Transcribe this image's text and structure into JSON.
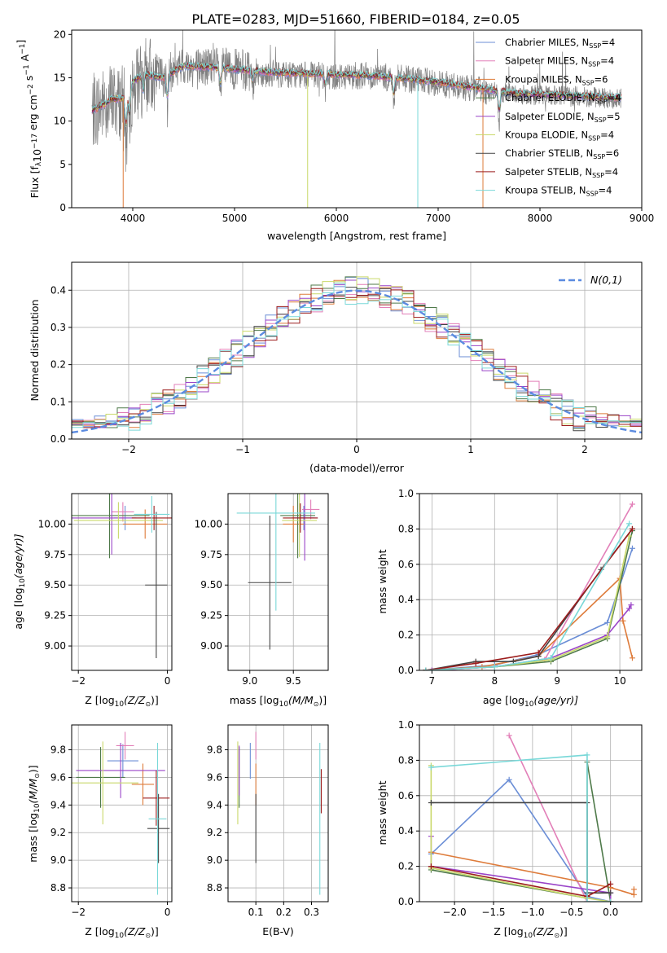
{
  "figure": {
    "title": "PLATE=0283, MJD=51660, FIBERID=0184, z=0.05"
  },
  "colors": {
    "series": [
      "#6b8ed6",
      "#e27fb8",
      "#de7b3a",
      "#4f7a4a",
      "#9a44c8",
      "#c9d96a",
      "#444444",
      "#9c1c1c",
      "#79d8d8"
    ],
    "data": "#808080",
    "gauss": "#5b8be0"
  },
  "series": [
    {
      "name_main": "Chabrier MILES, N",
      "name_sub": "SSP",
      "name_tail": "=4",
      "short": "Chabrier MILES"
    },
    {
      "name_main": "Salpeter MILES, N",
      "name_sub": "SSP",
      "name_tail": "=4",
      "short": "Salpeter MILES"
    },
    {
      "name_main": "Kroupa MILES, N",
      "name_sub": "SSP",
      "name_tail": "=6",
      "short": "Kroupa MILES"
    },
    {
      "name_main": "Chabrier ELODIE, N",
      "name_sub": "SSP",
      "name_tail": "=4",
      "short": "Chabrier ELODIE"
    },
    {
      "name_main": "Salpeter ELODIE, N",
      "name_sub": "SSP",
      "name_tail": "=5",
      "short": "Salpeter ELODIE"
    },
    {
      "name_main": "Kroupa ELODIE, N",
      "name_sub": "SSP",
      "name_tail": "=4",
      "short": "Kroupa ELODIE"
    },
    {
      "name_main": "Chabrier STELIB, N",
      "name_sub": "SSP",
      "name_tail": "=6",
      "short": "Chabrier STELIB"
    },
    {
      "name_main": "Salpeter STELIB, N",
      "name_sub": "SSP",
      "name_tail": "=4",
      "short": "Salpeter STELIB"
    },
    {
      "name_main": "Kroupa STELIB, N",
      "name_sub": "SSP",
      "name_tail": "=4",
      "short": "Kroupa STELIB"
    }
  ],
  "chart_data": [
    {
      "id": "spectrum",
      "type": "line",
      "xlabel": "wavelength [Angstrom, rest frame]",
      "ylabel_parts": [
        "Flux [f",
        "λ",
        "10",
        "−17",
        " erg cm",
        "−2",
        " s",
        "−1",
        " A",
        "−1",
        "]"
      ],
      "xlim": [
        3400,
        9000
      ],
      "ylim": [
        0,
        20.5
      ],
      "xticks": [
        4000,
        5000,
        6000,
        7000,
        8000,
        9000
      ],
      "yticks": [
        0,
        5,
        10,
        15,
        20
      ],
      "grid": false,
      "legend": "top-right",
      "data_x_range": [
        3600,
        8800
      ],
      "data_continuum": [
        [
          3600,
          11
        ],
        [
          3700,
          11.8
        ],
        [
          3800,
          12.5
        ],
        [
          3900,
          12
        ],
        [
          4000,
          14
        ],
        [
          4100,
          15
        ],
        [
          4200,
          15.5
        ],
        [
          4300,
          15.2
        ],
        [
          4500,
          16.3
        ],
        [
          4800,
          16.2
        ],
        [
          5000,
          16
        ],
        [
          5300,
          15.5
        ],
        [
          5700,
          15.3
        ],
        [
          6000,
          15.2
        ],
        [
          6300,
          15.3
        ],
        [
          6560,
          15
        ],
        [
          6800,
          14.7
        ],
        [
          7000,
          14.4
        ],
        [
          7200,
          14
        ],
        [
          7500,
          13.4
        ],
        [
          7800,
          13.1
        ],
        [
          8200,
          12.9
        ],
        [
          8500,
          12.8
        ],
        [
          8800,
          12.5
        ]
      ],
      "model_continuum": [
        [
          3600,
          11.2
        ],
        [
          3700,
          11.8
        ],
        [
          3800,
          12.6
        ],
        [
          3900,
          12.6
        ],
        [
          4000,
          14.5
        ],
        [
          4100,
          15.4
        ],
        [
          4300,
          15
        ],
        [
          4500,
          16.4
        ],
        [
          4800,
          16.2
        ],
        [
          5000,
          16
        ],
        [
          5400,
          15.6
        ],
        [
          5900,
          15.4
        ],
        [
          6300,
          15.3
        ],
        [
          6600,
          15
        ],
        [
          7000,
          14.5
        ],
        [
          7400,
          13.8
        ],
        [
          7800,
          13.2
        ],
        [
          8200,
          13
        ],
        [
          8800,
          12.7
        ]
      ],
      "absorption_dips": [
        [
          3934,
          6
        ],
        [
          3968,
          5
        ],
        [
          4101,
          3
        ],
        [
          4340,
          4
        ],
        [
          4861,
          3
        ],
        [
          5175,
          2
        ],
        [
          5893,
          2
        ],
        [
          6563,
          3
        ],
        [
          7600,
          4
        ]
      ],
      "spikes": [
        [
          3906,
          0
        ],
        [
          5718,
          0
        ],
        [
          6800,
          0
        ],
        [
          7440,
          0
        ]
      ],
      "emission_lines": [
        [
          3727,
          5
        ],
        [
          4861,
          3
        ],
        [
          4959,
          3
        ],
        [
          5007,
          4
        ],
        [
          6300,
          3
        ],
        [
          6563,
          6
        ],
        [
          6583,
          4
        ]
      ]
    },
    {
      "id": "residual_histogram",
      "type": "histogram",
      "xlabel": "(data-model)/error",
      "ylabel": "Normed distribution",
      "xlim": [
        -2.5,
        2.5
      ],
      "ylim": [
        0,
        0.475
      ],
      "xticks": [
        -2,
        -1,
        0,
        1,
        2
      ],
      "xtick_labels": [
        "−2",
        "−1",
        "0",
        "1",
        "2"
      ],
      "yticks": [
        0,
        0.1,
        0.2,
        0.3,
        0.4
      ],
      "ytick_labels": [
        "0.0",
        "0.1",
        "0.2",
        "0.3",
        "0.4"
      ],
      "grid": true,
      "legend": "top-right",
      "gauss_label": "N(0,1)",
      "bins": 50
    },
    {
      "id": "age_vs_Z",
      "type": "errorbar",
      "xlabel_main": "Z [log",
      "xlabel_sub": "10",
      "xlabel_tail": "(Z/Z",
      "xlabel_end": ")]",
      "ylabel_main": "age  [log",
      "ylabel_sub": "10",
      "ylabel_tail": "(age/yr)]",
      "xlim": [
        -2.15,
        0.1
      ],
      "ylim": [
        8.8,
        10.25
      ],
      "xticks": [
        -2,
        0
      ],
      "xtick_labels": [
        "−2",
        "0"
      ],
      "yticks": [
        9.0,
        9.25,
        9.5,
        9.75,
        10.0
      ],
      "ytick_labels": [
        "9.00",
        "9.25",
        "9.50",
        "9.75",
        "10.00"
      ],
      "grid": true,
      "points": [
        [
          -0.95,
          10.05,
          0.25,
          0.1,
          0
        ],
        [
          -1.0,
          10.1,
          0.25,
          0.08,
          1
        ],
        [
          -0.5,
          10.0,
          0.5,
          0.12,
          2
        ],
        [
          -1.3,
          10.07,
          0.9,
          0.35,
          3
        ],
        [
          -1.25,
          10.05,
          0.9,
          0.3,
          4
        ],
        [
          -1.1,
          10.03,
          1.0,
          0.15,
          5
        ],
        [
          -0.25,
          9.5,
          0.25,
          0.6,
          6
        ],
        [
          -0.3,
          10.05,
          0.5,
          0.1,
          7
        ],
        [
          -0.35,
          10.08,
          0.4,
          0.15,
          8
        ]
      ]
    },
    {
      "id": "age_vs_mass",
      "type": "errorbar",
      "xlabel_main": "mass [log",
      "xlabel_sub": "10",
      "xlabel_tail": "(M/M",
      "xlabel_end": ")]",
      "xlim": [
        8.75,
        9.9
      ],
      "ylim": [
        8.8,
        10.25
      ],
      "xticks": [
        9.0,
        9.5
      ],
      "xtick_labels": [
        "9.0",
        "9.5"
      ],
      "yticks": [
        9.0,
        9.25,
        9.5,
        9.75,
        10.0
      ],
      "ytick_labels": [
        "9.00",
        "9.25",
        "9.50",
        "9.75",
        "10.00"
      ],
      "grid": true,
      "points": [
        [
          9.62,
          10.05,
          0.12,
          0.1,
          0
        ],
        [
          9.7,
          10.12,
          0.1,
          0.08,
          1
        ],
        [
          9.5,
          10.0,
          0.12,
          0.15,
          2
        ],
        [
          9.55,
          10.07,
          0.2,
          0.35,
          3
        ],
        [
          9.63,
          10.05,
          0.15,
          0.35,
          4
        ],
        [
          9.57,
          10.03,
          0.2,
          0.3,
          5
        ],
        [
          9.23,
          9.52,
          0.25,
          0.55,
          6
        ],
        [
          9.58,
          10.05,
          0.2,
          0.12,
          7
        ],
        [
          9.3,
          10.09,
          0.45,
          0.8,
          8
        ]
      ]
    },
    {
      "id": "massweight_vs_age",
      "type": "line",
      "xlabel_main": "age  [log",
      "xlabel_sub": "10",
      "xlabel_tail": "(age/yr)]",
      "ylabel": "mass weight",
      "xlim": [
        6.8,
        10.35
      ],
      "ylim": [
        0,
        1.0
      ],
      "xticks": [
        7,
        8,
        9,
        10
      ],
      "yticks": [
        0,
        0.2,
        0.4,
        0.6,
        0.8,
        1.0
      ],
      "ytick_labels": [
        "0.0",
        "0.2",
        "0.4",
        "0.6",
        "0.8",
        "1.0"
      ],
      "grid": true,
      "lines": [
        [
          [
            6.9,
            0
          ],
          [
            8.0,
            0.03
          ],
          [
            8.7,
            0.09
          ],
          [
            9.8,
            0.27
          ],
          [
            10.2,
            0.69
          ]
        ],
        [
          [
            7.0,
            0
          ],
          [
            8.0,
            0.02
          ],
          [
            8.8,
            0.06
          ],
          [
            10.2,
            0.94
          ]
        ],
        [
          [
            6.9,
            0
          ],
          [
            7.8,
            0.02
          ],
          [
            8.7,
            0.08
          ],
          [
            10.0,
            0.52
          ],
          [
            10.05,
            0.28
          ],
          [
            10.2,
            0.07
          ]
        ],
        [
          [
            6.9,
            0
          ],
          [
            8.0,
            0.02
          ],
          [
            8.9,
            0.05
          ],
          [
            9.8,
            0.18
          ],
          [
            10.2,
            0.79
          ]
        ],
        [
          [
            7.0,
            0
          ],
          [
            8.0,
            0.02
          ],
          [
            8.9,
            0.07
          ],
          [
            9.8,
            0.2
          ],
          [
            10.15,
            0.35
          ],
          [
            10.18,
            0.37
          ]
        ],
        [
          [
            6.9,
            0
          ],
          [
            8.0,
            0.02
          ],
          [
            8.9,
            0.06
          ],
          [
            9.8,
            0.19
          ],
          [
            10.15,
            0.76
          ]
        ],
        [
          [
            6.9,
            0
          ],
          [
            7.7,
            0.05
          ],
          [
            8.3,
            0.05
          ],
          [
            8.7,
            0.08
          ],
          [
            9.7,
            0.57
          ],
          [
            10.2,
            0.8
          ]
        ],
        [
          [
            6.9,
            0
          ],
          [
            7.7,
            0.04
          ],
          [
            8.7,
            0.1
          ],
          [
            10.2,
            0.8
          ]
        ],
        [
          [
            6.9,
            0
          ],
          [
            8.0,
            0.02
          ],
          [
            8.9,
            0.07
          ],
          [
            10.15,
            0.83
          ]
        ]
      ]
    },
    {
      "id": "mass_vs_Z",
      "type": "errorbar",
      "xlabel_main": "Z [log",
      "xlabel_sub": "10",
      "xlabel_tail": "(Z/Z",
      "xlabel_end": ")]",
      "ylabel_main": "mass [log",
      "ylabel_sub": "10",
      "ylabel_tail": "(M/M",
      "ylabel_end": ")]",
      "xlim": [
        -2.15,
        0.1
      ],
      "ylim": [
        8.7,
        9.98
      ],
      "xticks": [
        -2,
        0
      ],
      "xtick_labels": [
        "−2",
        "0"
      ],
      "yticks": [
        8.8,
        9.0,
        9.2,
        9.4,
        9.6,
        9.8
      ],
      "ytick_labels": [
        "8.8",
        "9.0",
        "9.2",
        "9.4",
        "9.6",
        "9.8"
      ],
      "grid": true,
      "points": [
        [
          -1.0,
          9.72,
          0.35,
          0.12,
          0
        ],
        [
          -0.95,
          9.83,
          0.2,
          0.1,
          1
        ],
        [
          -0.55,
          9.55,
          0.25,
          0.15,
          2
        ],
        [
          -1.5,
          9.6,
          0.55,
          0.22,
          3
        ],
        [
          -1.05,
          9.65,
          1.0,
          0.2,
          4
        ],
        [
          -1.45,
          9.56,
          0.8,
          0.3,
          5
        ],
        [
          -0.2,
          9.23,
          0.25,
          0.25,
          6
        ],
        [
          -0.25,
          9.45,
          0.3,
          0.2,
          7
        ],
        [
          -0.22,
          9.3,
          0.2,
          0.55,
          8
        ]
      ]
    },
    {
      "id": "mass_vs_EBV",
      "type": "errorbar",
      "xlabel": "E(B-V)",
      "xlim": [
        0.0,
        0.36
      ],
      "ylim": [
        8.7,
        9.98
      ],
      "xticks": [
        0.1,
        0.2,
        0.3
      ],
      "xtick_labels": [
        "0.1",
        "0.2",
        "0.3"
      ],
      "yticks": [
        8.8,
        9.0,
        9.2,
        9.4,
        9.6,
        9.8
      ],
      "ytick_labels": [
        "8.8",
        "9.0",
        "9.2",
        "9.4",
        "9.6",
        "9.8"
      ],
      "grid": true,
      "points": [
        [
          0.08,
          9.72,
          0,
          0.13,
          0
        ],
        [
          0.1,
          9.83,
          0,
          0.1,
          1
        ],
        [
          0.1,
          9.55,
          0,
          0.15,
          2
        ],
        [
          0.04,
          9.6,
          0,
          0.22,
          3
        ],
        [
          0.04,
          9.65,
          0,
          0.18,
          4
        ],
        [
          0.035,
          9.56,
          0,
          0.3,
          5
        ],
        [
          0.1,
          9.23,
          0,
          0.25,
          6
        ],
        [
          0.335,
          9.5,
          0,
          0.16,
          7
        ],
        [
          0.33,
          9.3,
          0,
          0.55,
          8
        ]
      ]
    },
    {
      "id": "massweight_vs_Z",
      "type": "line",
      "xlabel_main": "Z [log",
      "xlabel_sub": "10",
      "xlabel_tail": "(Z/Z",
      "xlabel_end": ")]",
      "ylabel": "mass weight",
      "xlim": [
        -2.45,
        0.4
      ],
      "ylim": [
        0,
        1.0
      ],
      "xticks": [
        -2.0,
        -1.5,
        -1.0,
        -0.5,
        0.0
      ],
      "xtick_labels": [
        "−2.0",
        "−1.5",
        "−1.0",
        "−0.5",
        "0.0"
      ],
      "yticks": [
        0,
        0.2,
        0.4,
        0.6,
        0.8,
        1.0
      ],
      "ytick_labels": [
        "0.0",
        "0.2",
        "0.4",
        "0.6",
        "0.8",
        "1.0"
      ],
      "grid": true,
      "lines": [
        [
          [
            -2.3,
            0.27
          ],
          [
            -1.3,
            0.69
          ],
          [
            -0.3,
            0.03
          ],
          [
            0.0,
            0.0
          ]
        ],
        [
          [
            -1.3,
            0.94
          ],
          [
            -0.3,
            0.0
          ]
        ],
        [
          [
            -2.3,
            0.28
          ],
          [
            0.0,
            0.08
          ],
          [
            0.3,
            0.04
          ],
          [
            0.3,
            0.07
          ]
        ],
        [
          [
            -2.3,
            0.18
          ],
          [
            -0.3,
            0.02
          ],
          [
            -0.3,
            0.79
          ],
          [
            0.0,
            0.0
          ]
        ],
        [
          [
            -2.3,
            0.37
          ],
          [
            -2.3,
            0.2
          ],
          [
            0.0,
            0.05
          ],
          [
            0.0,
            0.0
          ]
        ],
        [
          [
            -2.3,
            0.77
          ],
          [
            -2.3,
            0.19
          ],
          [
            -0.3,
            0.02
          ],
          [
            0.0,
            0.0
          ]
        ],
        [
          [
            -2.3,
            0.56
          ],
          [
            -0.3,
            0.56
          ],
          [
            -0.3,
            0.05
          ],
          [
            0.0,
            0.05
          ]
        ],
        [
          [
            -2.3,
            0.2
          ],
          [
            -0.3,
            0.03
          ],
          [
            0.0,
            0.1
          ]
        ],
        [
          [
            -2.3,
            0.76
          ],
          [
            -0.3,
            0.83
          ],
          [
            -0.3,
            0.0
          ],
          [
            0.0,
            0.0
          ]
        ]
      ]
    }
  ]
}
